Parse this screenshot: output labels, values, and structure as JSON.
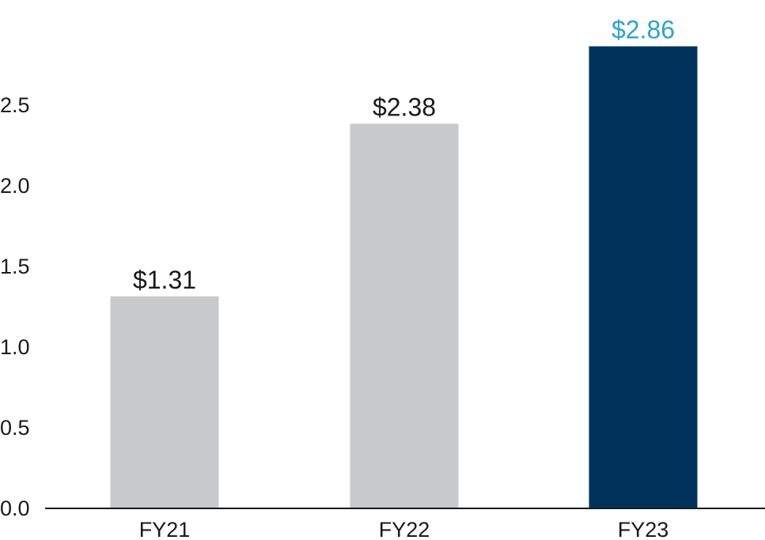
{
  "chart_data": {
    "type": "bar",
    "title": "",
    "xlabel": "",
    "ylabel": "",
    "categories": [
      "FY21",
      "FY22",
      "FY23"
    ],
    "values": [
      1.31,
      2.38,
      2.86
    ],
    "value_labels": [
      "$1.31",
      "$2.38",
      "$2.86"
    ],
    "ylim": [
      0,
      2.86
    ],
    "yticks": [
      0.0,
      0.5,
      1.0,
      1.5,
      2.0,
      2.5
    ],
    "ytick_labels": [
      "0.0",
      "0.5",
      "1.0",
      "1.5",
      "2.0",
      "2.5"
    ],
    "grid": false,
    "legend": "none",
    "bar_colors": [
      "#c8c9cb",
      "#c8c9cb",
      "#00335b"
    ],
    "value_label_colors": [
      "#1a1a1a",
      "#1a1a1a",
      "#2aa3d4"
    ],
    "axis_color": "#1a1a1a"
  }
}
